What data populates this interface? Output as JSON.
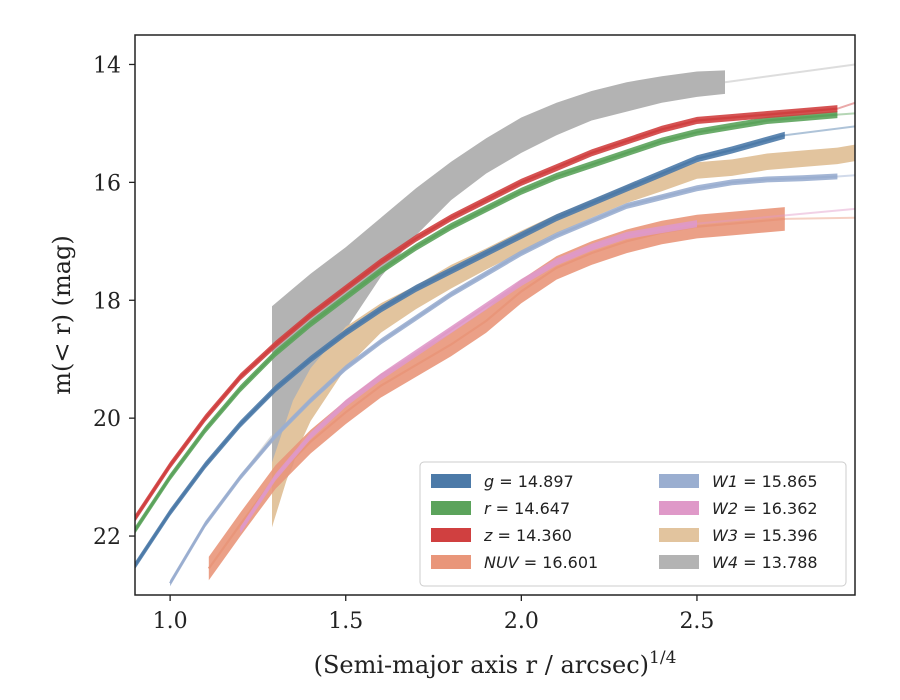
{
  "chart_data": {
    "type": "line",
    "title": "",
    "xlabel": "(Semi-major axis r / arcsec)",
    "xlabel_superscript": "1/4",
    "ylabel": "m(< r) (mag)",
    "xlim": [
      0.9,
      2.95
    ],
    "ylim": [
      23.0,
      13.5
    ],
    "y_inverted": true,
    "grid": false,
    "legend_position": "lower-right",
    "legend_columns": 2,
    "x_ticks": [
      1.0,
      1.5,
      2.0,
      2.5
    ],
    "x_tick_labels": [
      "1.0",
      "1.5",
      "2.0",
      "2.5"
    ],
    "y_ticks": [
      14,
      16,
      18,
      20,
      22
    ],
    "y_tick_labels": [
      "14",
      "16",
      "18",
      "20",
      "22"
    ],
    "series": [
      {
        "name": "g",
        "label": "g = 14.897",
        "color": "#4c7aa8",
        "x": [
          0.9,
          1.0,
          1.1,
          1.2,
          1.3,
          1.4,
          1.5,
          1.6,
          1.7,
          1.8,
          1.9,
          2.0,
          2.1,
          2.2,
          2.3,
          2.4,
          2.5,
          2.6,
          2.75
        ],
        "y": [
          22.5,
          21.6,
          20.8,
          20.1,
          19.5,
          19.0,
          18.55,
          18.15,
          17.8,
          17.5,
          17.2,
          16.9,
          16.6,
          16.35,
          16.1,
          15.85,
          15.6,
          15.45,
          15.2
        ],
        "y_err": 0.06,
        "extension": {
          "x": [
            2.75,
            2.95
          ],
          "y": [
            15.2,
            15.05
          ]
        }
      },
      {
        "name": "r",
        "label": "r = 14.647",
        "color": "#5ba35b",
        "x": [
          0.9,
          1.0,
          1.1,
          1.2,
          1.3,
          1.4,
          1.5,
          1.6,
          1.7,
          1.8,
          1.9,
          2.0,
          2.1,
          2.2,
          2.3,
          2.4,
          2.5,
          2.6,
          2.7,
          2.8,
          2.9
        ],
        "y": [
          21.9,
          21.0,
          20.2,
          19.5,
          18.9,
          18.4,
          17.95,
          17.5,
          17.1,
          16.75,
          16.45,
          16.15,
          15.9,
          15.7,
          15.5,
          15.3,
          15.15,
          15.05,
          14.95,
          14.9,
          14.85
        ],
        "y_err": 0.06,
        "extension": {
          "x": [
            2.9,
            2.95
          ],
          "y": [
            14.85,
            14.83
          ]
        }
      },
      {
        "name": "z",
        "label": "z = 14.360",
        "color": "#d04040",
        "x": [
          0.9,
          1.0,
          1.1,
          1.2,
          1.3,
          1.4,
          1.5,
          1.6,
          1.7,
          1.8,
          1.9,
          2.0,
          2.1,
          2.2,
          2.3,
          2.4,
          2.5,
          2.6,
          2.7,
          2.8,
          2.9
        ],
        "y": [
          21.7,
          20.8,
          20.0,
          19.3,
          18.75,
          18.25,
          17.8,
          17.35,
          16.95,
          16.6,
          16.3,
          16.0,
          15.75,
          15.5,
          15.3,
          15.1,
          14.95,
          14.9,
          14.85,
          14.8,
          14.75
        ],
        "y_err": 0.06,
        "extension": {
          "x": [
            2.9,
            2.95
          ],
          "y": [
            14.75,
            14.65
          ]
        }
      },
      {
        "name": "NUV",
        "label": "NUV = 16.601",
        "color": "#e9967a",
        "x": [
          1.11,
          1.2,
          1.3,
          1.4,
          1.5,
          1.6,
          1.7,
          1.8,
          1.9,
          2.0,
          2.1,
          2.2,
          2.3,
          2.4,
          2.5,
          2.6,
          2.75
        ],
        "y": [
          22.55,
          21.8,
          21.0,
          20.4,
          19.9,
          19.45,
          19.1,
          18.75,
          18.35,
          17.85,
          17.45,
          17.2,
          17.0,
          16.85,
          16.75,
          16.7,
          16.62
        ],
        "y_err": 0.2,
        "extension": {
          "x": [
            2.75,
            2.95
          ],
          "y": [
            16.62,
            16.6
          ]
        }
      },
      {
        "name": "W1",
        "label": "W1 = 15.865",
        "color": "#9aaed0",
        "x": [
          1.0,
          1.1,
          1.2,
          1.3,
          1.4,
          1.5,
          1.6,
          1.7,
          1.8,
          1.9,
          2.0,
          2.1,
          2.2,
          2.3,
          2.4,
          2.5,
          2.6,
          2.7,
          2.8,
          2.9
        ],
        "y": [
          22.8,
          21.8,
          21.0,
          20.3,
          19.7,
          19.15,
          18.7,
          18.3,
          17.9,
          17.55,
          17.2,
          16.9,
          16.65,
          16.4,
          16.25,
          16.1,
          16.0,
          15.95,
          15.93,
          15.9
        ],
        "y_err": 0.05,
        "extension": {
          "x": [
            2.9,
            2.95
          ],
          "y": [
            15.9,
            15.88
          ]
        }
      },
      {
        "name": "W2",
        "label": "W2 = 16.362",
        "color": "#df99c8",
        "x": [
          1.2,
          1.3,
          1.4,
          1.5,
          1.6,
          1.7,
          1.8,
          1.9,
          2.0,
          2.1,
          2.2,
          2.3,
          2.4,
          2.5
        ],
        "y": [
          21.9,
          21.0,
          20.3,
          19.75,
          19.3,
          18.9,
          18.5,
          18.1,
          17.7,
          17.35,
          17.1,
          16.9,
          16.8,
          16.7
        ],
        "y_err": 0.06,
        "extension": {
          "x": [
            2.5,
            2.95
          ],
          "y": [
            16.7,
            16.45
          ]
        }
      },
      {
        "name": "W3",
        "label": "W3 = 15.396",
        "color": "#e2c49e",
        "x": [
          1.29,
          1.35,
          1.4,
          1.5,
          1.6,
          1.7,
          1.8,
          1.9,
          2.0,
          2.1,
          2.2,
          2.3,
          2.4,
          2.5,
          2.6,
          2.7,
          2.8,
          2.9,
          2.95
        ],
        "y": [
          21.3,
          20.2,
          19.6,
          18.8,
          18.3,
          17.95,
          17.6,
          17.3,
          17.0,
          16.7,
          16.45,
          16.2,
          16.0,
          15.8,
          15.75,
          15.65,
          15.6,
          15.55,
          15.5
        ],
        "y_err_lower": [
          0.55,
          0.5,
          0.45,
          0.35,
          0.25,
          0.2,
          0.2,
          0.18,
          0.18,
          0.16,
          0.15,
          0.15,
          0.15,
          0.14,
          0.14,
          0.14,
          0.14,
          0.14,
          0.14
        ],
        "y_err_upper": [
          0.55,
          0.5,
          0.45,
          0.35,
          0.25,
          0.2,
          0.2,
          0.18,
          0.18,
          0.16,
          0.15,
          0.15,
          0.15,
          0.14,
          0.14,
          0.14,
          0.14,
          0.14,
          0.14
        ]
      },
      {
        "name": "W4",
        "label": "W4 = 13.788",
        "color": "#b3b3b3",
        "x": [
          1.29,
          1.35,
          1.4,
          1.5,
          1.6,
          1.7,
          1.8,
          1.9,
          2.0,
          2.1,
          2.2,
          2.3,
          2.4,
          2.5,
          2.58
        ],
        "y_upper": [
          18.1,
          17.8,
          17.55,
          17.1,
          16.6,
          16.1,
          15.65,
          15.25,
          14.9,
          14.65,
          14.45,
          14.3,
          14.2,
          14.12,
          14.1
        ],
        "y_lower": [
          21.6,
          20.8,
          19.8,
          18.5,
          17.6,
          16.9,
          16.3,
          15.85,
          15.5,
          15.2,
          14.95,
          14.8,
          14.65,
          14.55,
          14.5
        ],
        "extension": {
          "x": [
            1.0,
            1.1,
            1.2,
            1.29
          ],
          "y": [
            22.8,
            21.8,
            21.0,
            20.3
          ],
          "x2": [
            2.58,
            2.95
          ],
          "y2": [
            14.3,
            14.0
          ]
        }
      }
    ]
  }
}
